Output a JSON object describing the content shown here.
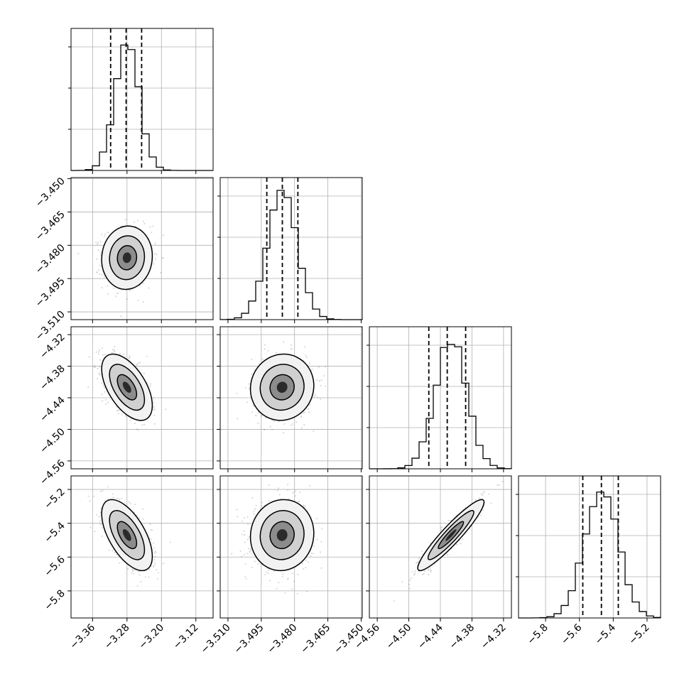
{
  "chart_data": {
    "type": "corner",
    "grid": true,
    "n_params": 4,
    "params": [
      {
        "mean": -3.28,
        "sd": 0.028,
        "range": [
          -3.41,
          -3.08
        ],
        "quantiles": [
          -3.318,
          -3.282,
          -3.246
        ],
        "ticks": [
          -3.36,
          -3.28,
          -3.2,
          -3.12
        ],
        "tick_labels": [
          "−3.36",
          "−3.28",
          "−3.20",
          "−3.12"
        ]
      },
      {
        "mean": -3.4856,
        "sd": 0.0068,
        "range": [
          -3.5135,
          -3.4495
        ],
        "quantiles": [
          -3.4925,
          -3.4855,
          -3.4785
        ],
        "ticks": [
          -3.51,
          -3.495,
          -3.48,
          -3.465,
          -3.45
        ],
        "tick_labels": [
          "−3.510",
          "−3.495",
          "−3.480",
          "−3.465",
          "−3.450"
        ]
      },
      {
        "mean": -4.42,
        "sd": 0.03,
        "range": [
          -4.575,
          -4.305
        ],
        "quantiles": [
          -4.462,
          -4.427,
          -4.392
        ],
        "ticks": [
          -4.56,
          -4.5,
          -4.44,
          -4.38,
          -4.32
        ],
        "tick_labels": [
          "−4.56",
          "−4.50",
          "−4.44",
          "−4.38",
          "−4.32"
        ]
      },
      {
        "mean": -5.47,
        "sd": 0.1,
        "range": [
          -5.96,
          -5.12
        ],
        "quantiles": [
          -5.58,
          -5.47,
          -5.37
        ],
        "ticks": [
          -5.8,
          -5.6,
          -5.4,
          -5.2
        ],
        "tick_labels": [
          "−5.8",
          "−5.6",
          "−5.4",
          "−5.2"
        ]
      }
    ],
    "correlations": {
      "1-0": 0.05,
      "2-0": -0.55,
      "2-1": 0.05,
      "3-0": -0.6,
      "3-1": 0.05,
      "3-2": 0.93
    },
    "colors": {
      "ink": "#000000",
      "grid": "#b0b0b0",
      "scatter": "#7f7f7f"
    }
  }
}
